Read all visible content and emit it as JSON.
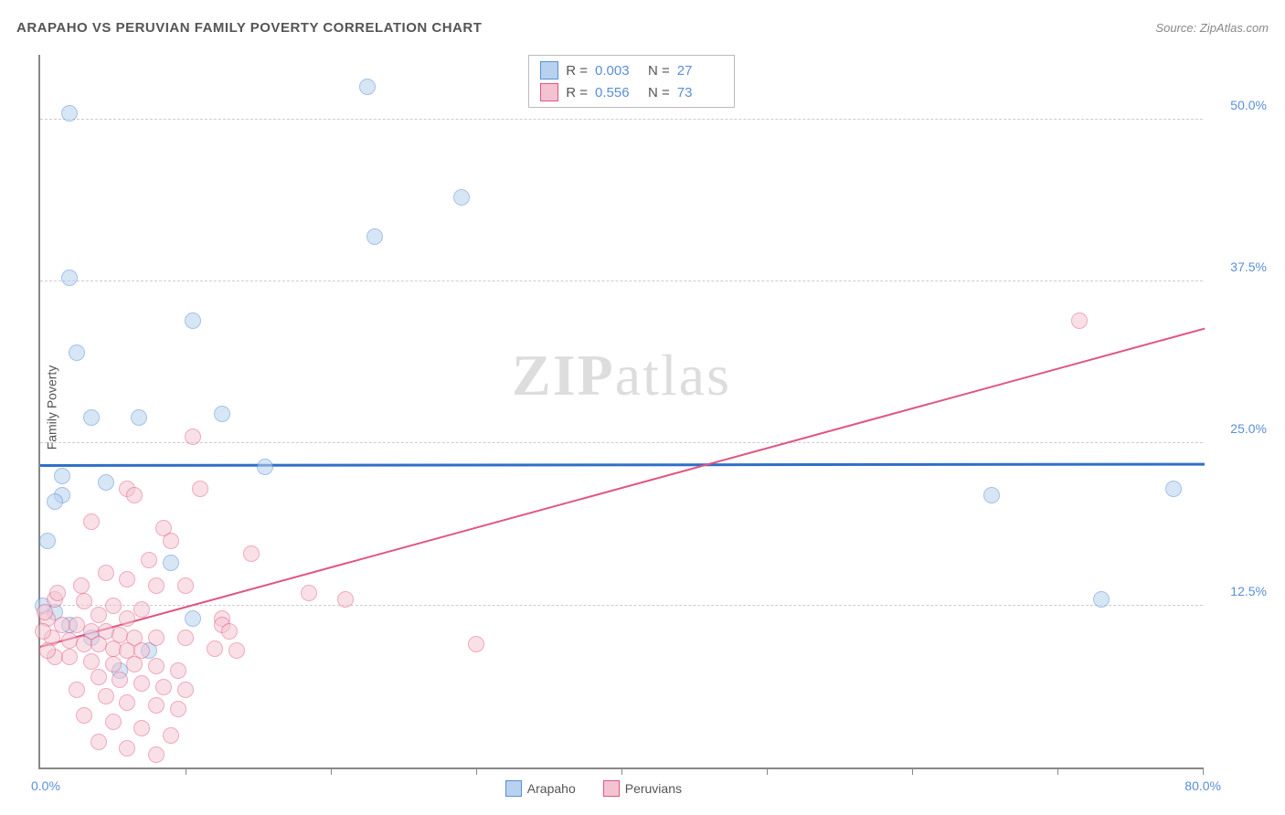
{
  "title": "ARAPAHO VS PERUVIAN FAMILY POVERTY CORRELATION CHART",
  "source": "Source: ZipAtlas.com",
  "ylabel": "Family Poverty",
  "watermark_part1": "ZIP",
  "watermark_part2": "atlas",
  "chart": {
    "type": "scatter",
    "xlim": [
      0,
      80
    ],
    "ylim": [
      0,
      55
    ],
    "x_min_label": "0.0%",
    "x_max_label": "80.0%",
    "y_ticks": [
      12.5,
      25.0,
      37.5,
      50.0
    ],
    "y_tick_labels": [
      "12.5%",
      "25.0%",
      "37.5%",
      "50.0%"
    ],
    "x_tick_positions": [
      10,
      20,
      30,
      40,
      50,
      60,
      70,
      80
    ],
    "background_color": "#ffffff",
    "grid_color": "#cccccc",
    "axis_color": "#888888",
    "label_color": "#5b8fd6",
    "series": [
      {
        "name": "Arapaho",
        "fill": "#b7d2ee",
        "stroke": "#5b8fd6",
        "stroke_width": 1.5,
        "marker_radius": 9,
        "fill_opacity": 0.55,
        "R": "0.003",
        "N": "27",
        "trend": {
          "y_at_x0": 23.5,
          "y_at_xmax": 23.6,
          "color": "#2f6fc8",
          "width": 2.5
        },
        "points": [
          {
            "x": 2.0,
            "y": 50.5
          },
          {
            "x": 22.5,
            "y": 52.5
          },
          {
            "x": 29.0,
            "y": 44.0
          },
          {
            "x": 23.0,
            "y": 41.0
          },
          {
            "x": 2.0,
            "y": 37.8
          },
          {
            "x": 10.5,
            "y": 34.5
          },
          {
            "x": 2.5,
            "y": 32.0
          },
          {
            "x": 3.5,
            "y": 27.0
          },
          {
            "x": 6.8,
            "y": 27.0
          },
          {
            "x": 12.5,
            "y": 27.3
          },
          {
            "x": 15.5,
            "y": 23.2
          },
          {
            "x": 1.5,
            "y": 22.5
          },
          {
            "x": 4.5,
            "y": 22.0
          },
          {
            "x": 1.5,
            "y": 21.0
          },
          {
            "x": 1.0,
            "y": 20.5
          },
          {
            "x": 0.5,
            "y": 17.5
          },
          {
            "x": 9.0,
            "y": 15.8
          },
          {
            "x": 10.5,
            "y": 11.5
          },
          {
            "x": 2.0,
            "y": 11.0
          },
          {
            "x": 1.0,
            "y": 12.0
          },
          {
            "x": 3.5,
            "y": 10.0
          },
          {
            "x": 7.5,
            "y": 9.0
          },
          {
            "x": 5.5,
            "y": 7.5
          },
          {
            "x": 78.0,
            "y": 21.5
          },
          {
            "x": 65.5,
            "y": 21.0
          },
          {
            "x": 73.0,
            "y": 13.0
          },
          {
            "x": 0.2,
            "y": 12.5
          }
        ]
      },
      {
        "name": "Peruvians",
        "fill": "#f4c3d1",
        "stroke": "#e0567f",
        "stroke_width": 1.5,
        "marker_radius": 9,
        "fill_opacity": 0.5,
        "R": "0.556",
        "N": "73",
        "trend": {
          "y_at_x0": 9.5,
          "y_at_xmax": 34.0,
          "color": "#e0567f",
          "width": 2
        },
        "points": [
          {
            "x": 71.5,
            "y": 34.5
          },
          {
            "x": 10.5,
            "y": 25.5
          },
          {
            "x": 6.0,
            "y": 21.5
          },
          {
            "x": 11.0,
            "y": 21.5
          },
          {
            "x": 6.5,
            "y": 21.0
          },
          {
            "x": 3.5,
            "y": 19.0
          },
          {
            "x": 8.5,
            "y": 18.5
          },
          {
            "x": 9.0,
            "y": 17.5
          },
          {
            "x": 7.5,
            "y": 16.0
          },
          {
            "x": 14.5,
            "y": 16.5
          },
          {
            "x": 4.5,
            "y": 15.0
          },
          {
            "x": 6.0,
            "y": 14.5
          },
          {
            "x": 8.0,
            "y": 14.0
          },
          {
            "x": 10.0,
            "y": 14.0
          },
          {
            "x": 18.5,
            "y": 13.5
          },
          {
            "x": 21.0,
            "y": 13.0
          },
          {
            "x": 1.0,
            "y": 13.0
          },
          {
            "x": 3.0,
            "y": 12.8
          },
          {
            "x": 5.0,
            "y": 12.5
          },
          {
            "x": 7.0,
            "y": 12.2
          },
          {
            "x": 4.0,
            "y": 11.8
          },
          {
            "x": 6.0,
            "y": 11.5
          },
          {
            "x": 12.5,
            "y": 11.5
          },
          {
            "x": 12.5,
            "y": 11.0
          },
          {
            "x": 0.5,
            "y": 11.5
          },
          {
            "x": 1.5,
            "y": 11.0
          },
          {
            "x": 2.5,
            "y": 11.0
          },
          {
            "x": 3.5,
            "y": 10.5
          },
          {
            "x": 4.5,
            "y": 10.5
          },
          {
            "x": 5.5,
            "y": 10.2
          },
          {
            "x": 6.5,
            "y": 10.0
          },
          {
            "x": 8.0,
            "y": 10.0
          },
          {
            "x": 10.0,
            "y": 10.0
          },
          {
            "x": 0.8,
            "y": 10.0
          },
          {
            "x": 2.0,
            "y": 9.8
          },
          {
            "x": 3.0,
            "y": 9.5
          },
          {
            "x": 4.0,
            "y": 9.5
          },
          {
            "x": 5.0,
            "y": 9.2
          },
          {
            "x": 6.0,
            "y": 9.0
          },
          {
            "x": 7.0,
            "y": 9.0
          },
          {
            "x": 12.0,
            "y": 9.2
          },
          {
            "x": 13.5,
            "y": 9.0
          },
          {
            "x": 30.0,
            "y": 9.5
          },
          {
            "x": 1.0,
            "y": 8.5
          },
          {
            "x": 2.0,
            "y": 8.5
          },
          {
            "x": 3.5,
            "y": 8.2
          },
          {
            "x": 5.0,
            "y": 8.0
          },
          {
            "x": 6.5,
            "y": 8.0
          },
          {
            "x": 8.0,
            "y": 7.8
          },
          {
            "x": 9.5,
            "y": 7.5
          },
          {
            "x": 4.0,
            "y": 7.0
          },
          {
            "x": 5.5,
            "y": 6.8
          },
          {
            "x": 7.0,
            "y": 6.5
          },
          {
            "x": 8.5,
            "y": 6.2
          },
          {
            "x": 10.0,
            "y": 6.0
          },
          {
            "x": 2.5,
            "y": 6.0
          },
          {
            "x": 4.5,
            "y": 5.5
          },
          {
            "x": 6.0,
            "y": 5.0
          },
          {
            "x": 8.0,
            "y": 4.8
          },
          {
            "x": 9.5,
            "y": 4.5
          },
          {
            "x": 3.0,
            "y": 4.0
          },
          {
            "x": 5.0,
            "y": 3.5
          },
          {
            "x": 7.0,
            "y": 3.0
          },
          {
            "x": 9.0,
            "y": 2.5
          },
          {
            "x": 4.0,
            "y": 2.0
          },
          {
            "x": 6.0,
            "y": 1.5
          },
          {
            "x": 8.0,
            "y": 1.0
          },
          {
            "x": 0.3,
            "y": 12.0
          },
          {
            "x": 0.2,
            "y": 10.5
          },
          {
            "x": 0.5,
            "y": 9.0
          },
          {
            "x": 1.2,
            "y": 13.5
          },
          {
            "x": 2.8,
            "y": 14.0
          },
          {
            "x": 13.0,
            "y": 10.5
          }
        ]
      }
    ]
  },
  "legend": {
    "series1_label": "Arapaho",
    "series2_label": "Peruvians"
  }
}
